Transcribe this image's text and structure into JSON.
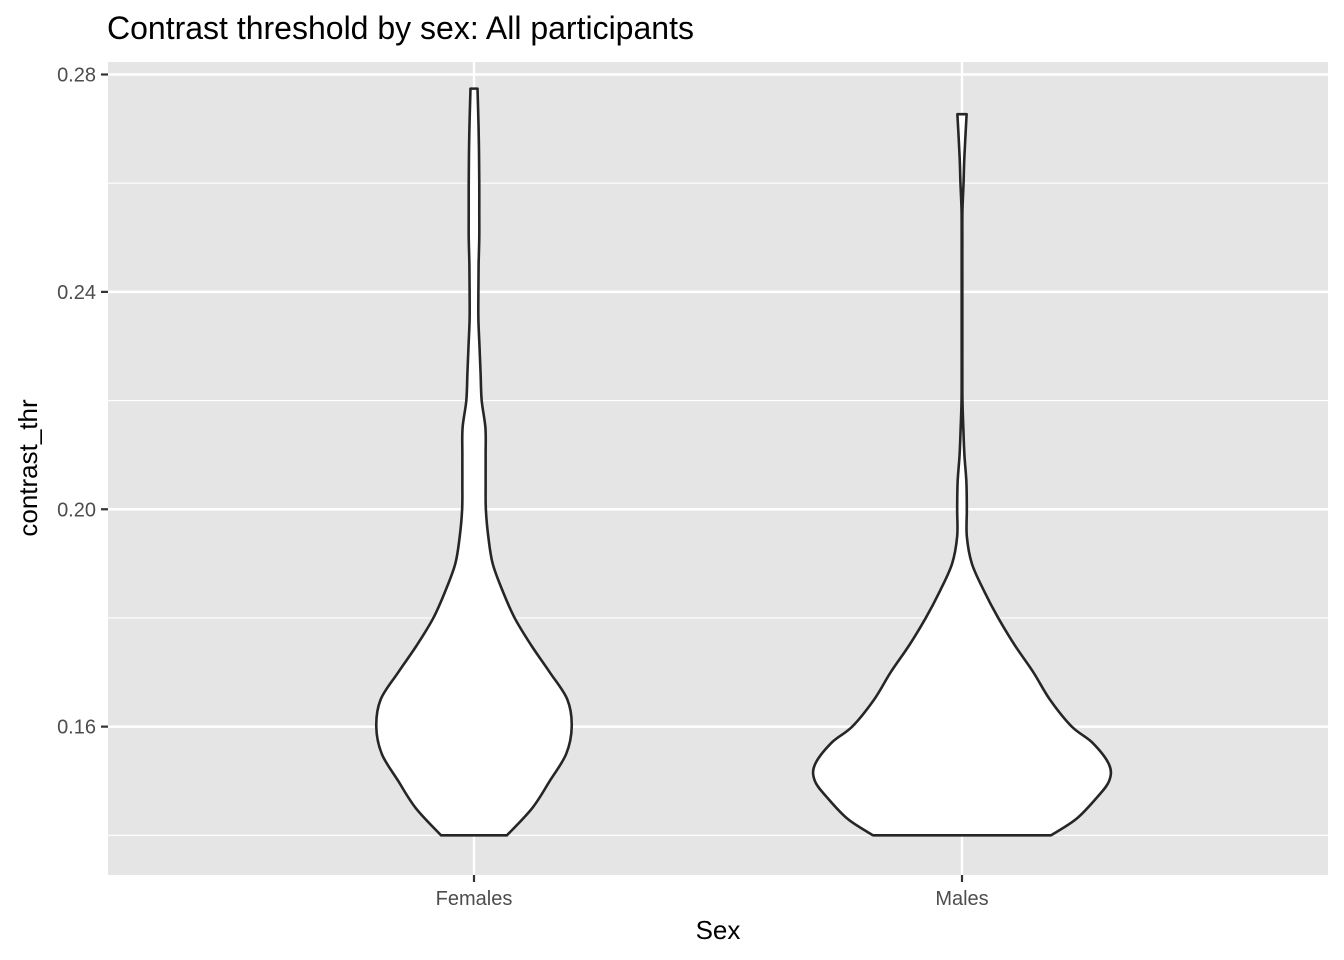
{
  "chart_data": {
    "type": "violin",
    "title": "Contrast threshold by sex: All participants",
    "xlabel": "Sex",
    "ylabel": "contrast_thr",
    "categories": [
      "Females",
      "Males"
    ],
    "y_ticks": [
      0.16,
      0.2,
      0.24,
      0.28
    ],
    "y_tick_labels": [
      "0.16",
      "0.20",
      "0.24",
      "0.28"
    ],
    "ylim": [
      0.1327,
      0.2823
    ],
    "grid": true,
    "legend": "none",
    "colors": {
      "panel": "#e5e5e5",
      "grid": "#ffffff",
      "violin_fill": "#ffffff",
      "violin_stroke": "#262626",
      "tick": "#333333"
    },
    "series": [
      {
        "category": "Females",
        "min": 0.14,
        "max": 0.2774,
        "density_profile": [
          [
            0.14,
            0.15
          ],
          [
            0.145,
            0.265
          ],
          [
            0.15,
            0.345
          ],
          [
            0.155,
            0.42
          ],
          [
            0.16,
            0.445
          ],
          [
            0.165,
            0.425
          ],
          [
            0.17,
            0.345
          ],
          [
            0.175,
            0.26
          ],
          [
            0.18,
            0.185
          ],
          [
            0.185,
            0.13
          ],
          [
            0.19,
            0.085
          ],
          [
            0.195,
            0.065
          ],
          [
            0.2,
            0.054
          ],
          [
            0.205,
            0.053
          ],
          [
            0.21,
            0.053
          ],
          [
            0.215,
            0.052
          ],
          [
            0.22,
            0.035
          ],
          [
            0.225,
            0.03
          ],
          [
            0.23,
            0.025
          ],
          [
            0.235,
            0.02
          ],
          [
            0.24,
            0.02
          ],
          [
            0.245,
            0.021
          ],
          [
            0.25,
            0.024
          ],
          [
            0.255,
            0.024
          ],
          [
            0.26,
            0.024
          ],
          [
            0.265,
            0.023
          ],
          [
            0.27,
            0.021
          ],
          [
            0.2774,
            0.016
          ]
        ]
      },
      {
        "category": "Males",
        "min": 0.14,
        "max": 0.2727,
        "density_profile": [
          [
            0.14,
            0.405
          ],
          [
            0.143,
            0.52
          ],
          [
            0.147,
            0.615
          ],
          [
            0.15,
            0.67
          ],
          [
            0.153,
            0.67
          ],
          [
            0.157,
            0.595
          ],
          [
            0.16,
            0.5
          ],
          [
            0.165,
            0.4
          ],
          [
            0.17,
            0.325
          ],
          [
            0.175,
            0.24
          ],
          [
            0.18,
            0.165
          ],
          [
            0.185,
            0.1
          ],
          [
            0.19,
            0.045
          ],
          [
            0.195,
            0.022
          ],
          [
            0.2,
            0.022
          ],
          [
            0.205,
            0.02
          ],
          [
            0.21,
            0.011
          ],
          [
            0.215,
            0.006
          ],
          [
            0.22,
            0.002
          ],
          [
            0.225,
            0.0015
          ],
          [
            0.23,
            0.0015
          ],
          [
            0.24,
            0.0015
          ],
          [
            0.25,
            0.0015
          ],
          [
            0.255,
            0.002
          ],
          [
            0.26,
            0.007
          ],
          [
            0.265,
            0.011
          ],
          [
            0.2727,
            0.021
          ]
        ]
      }
    ]
  }
}
